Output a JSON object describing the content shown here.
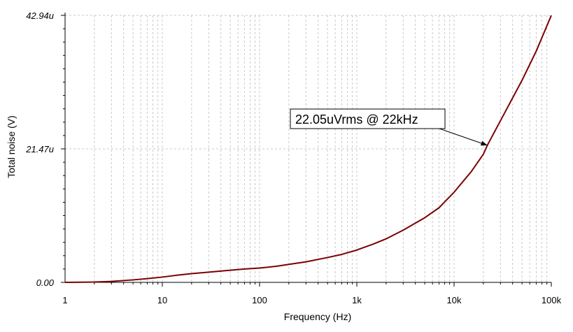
{
  "chart_data": {
    "type": "line",
    "xscale": "log",
    "xlim": [
      1,
      100000
    ],
    "ylim": [
      0,
      42.94
    ],
    "xlabel": "Frequency (Hz)",
    "ylabel": "Total noise (V)",
    "xticks": [
      {
        "value": 1,
        "label": "1"
      },
      {
        "value": 10,
        "label": "10"
      },
      {
        "value": 100,
        "label": "100"
      },
      {
        "value": 1000,
        "label": "1k"
      },
      {
        "value": 10000,
        "label": "10k"
      },
      {
        "value": 100000,
        "label": "100k"
      }
    ],
    "yticks": [
      {
        "value": 0,
        "label": "0.00"
      },
      {
        "value": 21.47,
        "label": "21.47u"
      },
      {
        "value": 42.94,
        "label": "42.94u"
      }
    ],
    "grid": true,
    "series": [
      {
        "color": "#7a0000",
        "x": [
          1,
          2,
          3,
          5,
          7,
          10,
          15,
          20,
          30,
          50,
          70,
          100,
          150,
          200,
          300,
          500,
          700,
          1000,
          1500,
          2000,
          3000,
          5000,
          7000,
          10000,
          15000,
          20000,
          22000,
          30000,
          50000,
          70000,
          100000
        ],
        "y": [
          0,
          0.05,
          0.15,
          0.4,
          0.6,
          0.85,
          1.2,
          1.4,
          1.65,
          1.95,
          2.15,
          2.3,
          2.6,
          2.9,
          3.3,
          4.0,
          4.5,
          5.2,
          6.2,
          7.0,
          8.4,
          10.4,
          12.0,
          14.5,
          17.8,
          20.6,
          22.05,
          26.0,
          32.5,
          37.2,
          42.94
        ]
      }
    ],
    "annotation": {
      "text": "22.05uVrms @ 22kHz",
      "x": 22000,
      "y": 22.05
    }
  }
}
